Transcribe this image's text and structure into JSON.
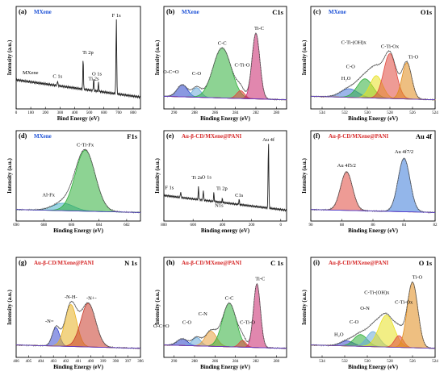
{
  "figure": {
    "background": "#ffffff",
    "frame_color": "#000000"
  },
  "chart_data": [
    {
      "panel": "(a)",
      "type": "line",
      "title": "MXene",
      "title_color": "#1a4fd6",
      "xlabel": "Bind Energy (eV)",
      "ylabel": "Intensity (a.u.)",
      "xlim": [
        0,
        850
      ],
      "xticks": [
        800,
        700,
        600,
        500,
        400,
        300,
        200,
        100,
        0
      ],
      "series_label": "MXene",
      "line_color": "#222222",
      "peaks": [
        {
          "label": "F 1s",
          "x": 685,
          "h": 0.88
        },
        {
          "label": "Ti 2s",
          "x": 563,
          "h": 0.1
        },
        {
          "label": "O 1s",
          "x": 530,
          "h": 0.15
        },
        {
          "label": "Ti 2p",
          "x": 458,
          "h": 0.38
        },
        {
          "label": "C 1s",
          "x": 283,
          "h": 0.06
        }
      ]
    },
    {
      "panel": "(b)",
      "type": "area",
      "title": "MXene",
      "title_color": "#1a4fd6",
      "core_level": "C1s",
      "xlabel": "Binding Energy (eV)",
      "ylabel": "Intensity (a.u.)",
      "xlim": [
        291,
        279
      ],
      "xticks": [
        290,
        288,
        286,
        284,
        282,
        280
      ],
      "components": [
        {
          "label": "O-C=O",
          "center": 289.2,
          "fwhm": 1.2,
          "h": 0.14,
          "color": "#2a44c8"
        },
        {
          "label": "C-O",
          "center": 287.8,
          "fwhm": 1.0,
          "h": 0.11,
          "color": "#6aa9d8"
        },
        {
          "label": "C-C",
          "center": 285.3,
          "fwhm": 2.1,
          "h": 0.58,
          "color": "#2fae3a"
        },
        {
          "label": "C-Ti-O",
          "center": 283.5,
          "fwhm": 0.9,
          "h": 0.09,
          "color": "#e0483e"
        },
        {
          "label": "Ti-C",
          "center": 282.0,
          "fwhm": 0.9,
          "h": 0.76,
          "color": "#c8246b"
        }
      ]
    },
    {
      "panel": "(c)",
      "type": "area",
      "title": "MXene",
      "title_color": "#1a4fd6",
      "core_level": "O1s",
      "xlabel": "Binding Energy (eV)",
      "ylabel": "Intensity (a.u.)",
      "xlim": [
        535,
        524
      ],
      "xticks": [
        534,
        532,
        530,
        528,
        526,
        524
      ],
      "components": [
        {
          "label": "H₂O",
          "center": 531.6,
          "fwhm": 1.8,
          "h": 0.1,
          "color": "#4a7ad8"
        },
        {
          "label": "C-O",
          "center": 530.2,
          "fwhm": 1.6,
          "h": 0.22,
          "color": "#2fae3a"
        },
        {
          "label": "C-Ti-(OH)x",
          "center": 529.2,
          "fwhm": 1.3,
          "h": 0.26,
          "color": "#e8e020"
        },
        {
          "label": "C-Ti-Ox",
          "center": 528.0,
          "fwhm": 1.3,
          "h": 0.52,
          "color": "#e0483e"
        },
        {
          "label": "Ti-O",
          "center": 526.5,
          "fwhm": 1.0,
          "h": 0.42,
          "color": "#e08a1a"
        }
      ]
    },
    {
      "panel": "(d)",
      "type": "area",
      "title": "MXene",
      "title_color": "#1a4fd6",
      "core_level": "F1s",
      "xlabel": "Binding Energy (eV)",
      "ylabel": "Intensity (a.u.)",
      "xlim": [
        690,
        681
      ],
      "xticks": [
        690,
        688,
        686,
        684,
        682
      ],
      "components": [
        {
          "label": "Al-Fx",
          "center": 686.6,
          "fwhm": 1.8,
          "h": 0.1,
          "color": "#4ab0c8"
        },
        {
          "label": "C-Ti-Fx",
          "center": 685.0,
          "fwhm": 1.7,
          "h": 0.82,
          "color": "#2fae3a"
        }
      ]
    },
    {
      "panel": "(e)",
      "type": "line",
      "title": "Au-β-CD/MXene@PANI",
      "title_color": "#d62a2a",
      "xlabel": "Binding energy (eV)",
      "ylabel": "Intensity (a.u.)",
      "xlim": [
        800,
        -40
      ],
      "xticks": [
        800,
        600,
        400,
        200,
        0
      ],
      "line_color": "#222222",
      "peaks": [
        {
          "label": "Au 4f",
          "x": 84,
          "h": 0.9
        },
        {
          "label": "F 1s",
          "x": 685,
          "h": 0.08
        },
        {
          "label": "Ti 2s",
          "x": 563,
          "h": 0.18
        },
        {
          "label": "O 1s",
          "x": 530,
          "h": 0.14
        },
        {
          "label": "Ti 2p",
          "x": 458,
          "h": 0.12
        },
        {
          "label": "N1s",
          "x": 400,
          "h": 0.05
        },
        {
          "label": "C1s",
          "x": 285,
          "h": 0.07
        }
      ]
    },
    {
      "panel": "(f)",
      "type": "area",
      "title": "Au-β-CD/MXene@PANI",
      "title_color": "#d62a2a",
      "core_level": "Au 4f",
      "xlabel": "Binding Energy (eV)",
      "ylabel": "Intensity (a.u.)",
      "xlim": [
        90,
        82
      ],
      "xticks": [
        90,
        88,
        86,
        84,
        82
      ],
      "components": [
        {
          "label": "Au 4f5/2",
          "center": 87.7,
          "fwhm": 0.9,
          "h": 0.52,
          "color": "#e0483e"
        },
        {
          "label": "Au 4f7/2",
          "center": 84.0,
          "fwhm": 0.9,
          "h": 0.72,
          "color": "#3a7ad8"
        }
      ]
    },
    {
      "panel": "(g)",
      "type": "area",
      "title": "Au-β-CD/MXene@PANI",
      "title_color": "#d62a2a",
      "core_level": "N 1s",
      "xlabel": "Binding Energy (eV)",
      "ylabel": "Intensity (a.u.)",
      "xlim": [
        406,
        396
      ],
      "xticks": [
        406,
        405,
        404,
        403,
        402,
        401,
        400,
        399,
        398,
        397,
        396
      ],
      "components": [
        {
          "label": "-N=",
          "center": 402.8,
          "fwhm": 0.7,
          "h": 0.22,
          "color": "#3a4ad0"
        },
        {
          "label": "-N-H-",
          "center": 401.6,
          "fwhm": 1.1,
          "h": 0.5,
          "color": "#e8b020"
        },
        {
          "label": "-N+-",
          "center": 400.2,
          "fwhm": 1.4,
          "h": 0.52,
          "color": "#c83a2a"
        }
      ]
    },
    {
      "panel": "(h)",
      "type": "area",
      "title": "Au-β-CD/MXene@PANI",
      "title_color": "#d62a2a",
      "core_level": "C 1s",
      "xlabel": "Binding Energy (eV)",
      "ylabel": "Intensity (a.u.)",
      "xlim": [
        291,
        279
      ],
      "xticks": [
        290,
        288,
        286,
        284,
        282,
        280
      ],
      "components": [
        {
          "label": "O-C=O",
          "center": 289.2,
          "fwhm": 1.2,
          "h": 0.08,
          "color": "#2a44c8"
        },
        {
          "label": "C-O",
          "center": 287.8,
          "fwhm": 1.0,
          "h": 0.1,
          "color": "#6aa9d8"
        },
        {
          "label": "C-N",
          "center": 286.4,
          "fwhm": 1.3,
          "h": 0.18,
          "color": "#e8a040"
        },
        {
          "label": "C-C",
          "center": 284.6,
          "fwhm": 1.6,
          "h": 0.52,
          "color": "#2fae3a"
        },
        {
          "label": "C-Ti-O",
          "center": 283.3,
          "fwhm": 0.8,
          "h": 0.08,
          "color": "#e0483e"
        },
        {
          "label": "Ti-C",
          "center": 281.9,
          "fwhm": 0.8,
          "h": 0.76,
          "color": "#c8246b"
        }
      ]
    },
    {
      "panel": "(i)",
      "type": "area",
      "title": "Au-β-CD/MXene@PANI",
      "title_color": "#d62a2a",
      "core_level": "O 1s",
      "xlabel": "Binding Energy (eV)",
      "ylabel": "Intensity (a.u.)",
      "xlim": [
        535,
        524
      ],
      "xticks": [
        534,
        532,
        530,
        528,
        526,
        524
      ],
      "components": [
        {
          "label": "H₂O",
          "center": 531.8,
          "fwhm": 1.4,
          "h": 0.06,
          "color": "#3a4ad0"
        },
        {
          "label": "C-O",
          "center": 530.6,
          "fwhm": 1.4,
          "h": 0.14,
          "color": "#2fae3a"
        },
        {
          "label": "O-N",
          "center": 529.5,
          "fwhm": 1.3,
          "h": 0.18,
          "color": "#6aa9d8"
        },
        {
          "label": "C-Ti-(OH)x",
          "center": 528.3,
          "fwhm": 1.6,
          "h": 0.38,
          "color": "#e8e020"
        },
        {
          "label": "C-Ti-Ox",
          "center": 527.2,
          "fwhm": 0.9,
          "h": 0.14,
          "color": "#e0483e"
        },
        {
          "label": "Ti-O",
          "center": 526.0,
          "fwhm": 1.1,
          "h": 0.78,
          "color": "#e08a1a"
        }
      ]
    }
  ]
}
